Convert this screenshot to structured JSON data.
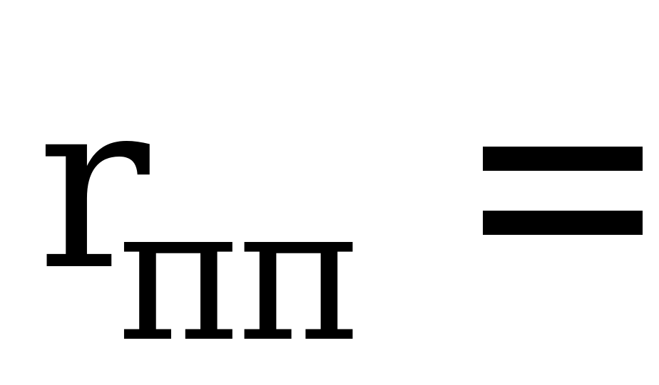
{
  "formula": {
    "base": "r",
    "subscript": "пп",
    "operator": "="
  }
}
